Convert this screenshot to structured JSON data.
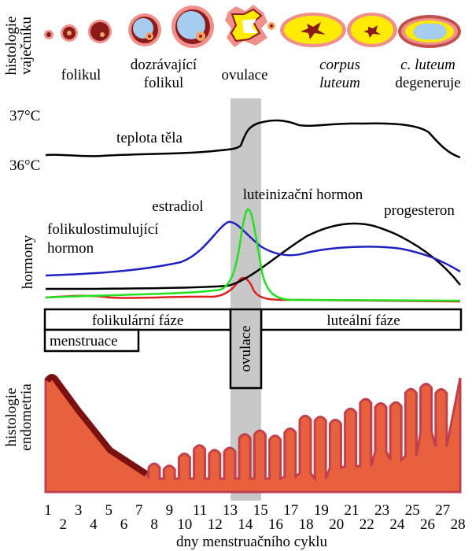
{
  "ovary": {
    "label": [
      "histologie",
      "vaječníku"
    ],
    "stages": [
      {
        "lines": [
          "folikul"
        ]
      },
      {
        "lines": [
          "dozrávající",
          "folikul"
        ]
      },
      {
        "lines": [
          "ovulace"
        ]
      },
      {
        "lines": [
          "corpus",
          "luteum"
        ]
      },
      {
        "lines": [
          "c. luteum",
          "degeneruje"
        ]
      }
    ]
  },
  "temperature": {
    "high": "37°C",
    "low": "36°C",
    "label": "teplota těla"
  },
  "hormones": {
    "label": "hormony",
    "estradiol": "estradiol",
    "lh": "luteinizační hormon",
    "progesterone": "progesteron",
    "fsh": [
      "folikulostimulující",
      "hormon"
    ]
  },
  "phases": {
    "follicular": "folikulární fáze",
    "luteal": "luteální fáze",
    "menstruation": "menstruace",
    "ovulation": "ovulace"
  },
  "endometrium": {
    "label": [
      "histologie",
      "endometria"
    ]
  },
  "days": [
    1,
    2,
    3,
    4,
    5,
    6,
    7,
    8,
    9,
    10,
    11,
    12,
    13,
    14,
    15,
    16,
    17,
    18,
    19,
    20,
    21,
    22,
    23,
    24,
    25,
    26,
    27,
    28
  ],
  "x_label": "dny menstruačního cyklu"
}
